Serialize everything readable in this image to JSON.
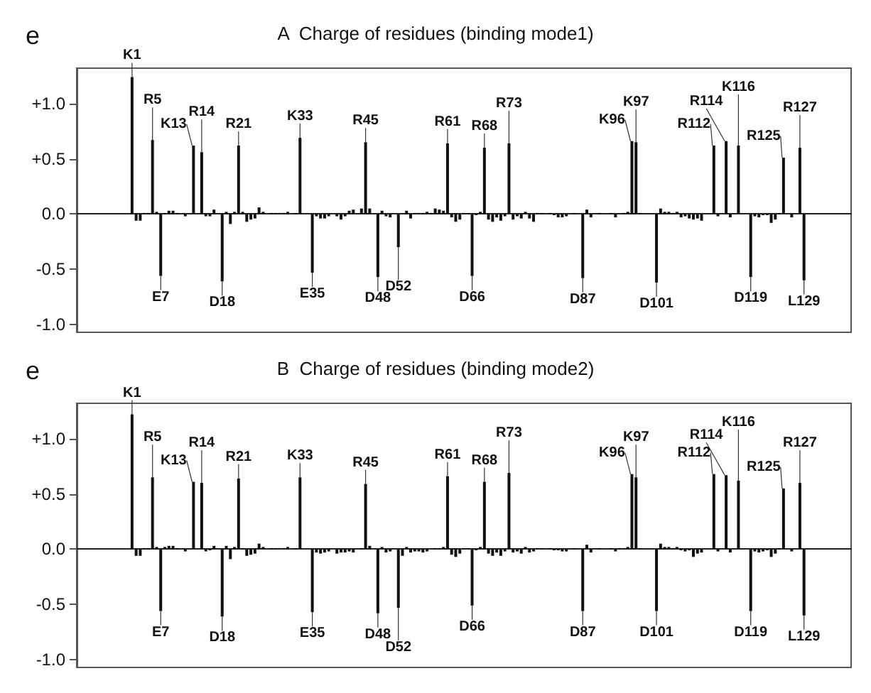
{
  "chart_data": [
    {
      "type": "bar",
      "title": "A  Charge of residues (binding mode1)",
      "annotations": [
        "e"
      ],
      "color": "#111111",
      "tick_labels": "y",
      "ylim": [
        -1.07,
        1.32
      ],
      "yticks": [
        {
          "value": 1,
          "label": "+1.0"
        },
        {
          "value": 0.5,
          "label": "+0.5"
        },
        {
          "value": 0,
          "label": "0.0"
        },
        {
          "value": -0.5,
          "label": "-0.5"
        },
        {
          "value": -1,
          "label": "-1.0"
        }
      ],
      "categories": [
        null,
        null,
        null,
        null,
        null,
        null,
        null,
        null,
        null,
        null,
        null,
        null,
        null,
        null,
        null,
        null,
        null,
        null,
        null,
        null,
        null,
        null,
        null,
        null,
        null,
        null,
        null,
        null,
        null,
        null,
        null,
        null,
        null,
        null,
        null,
        null,
        null,
        null,
        null,
        null,
        null,
        null,
        null,
        null,
        null,
        null,
        null,
        null,
        null,
        null,
        null,
        null,
        null,
        null,
        null,
        null,
        null,
        null,
        null,
        null,
        null,
        null,
        null,
        null,
        null,
        null,
        null,
        null,
        null,
        null,
        null,
        null,
        null,
        null,
        null,
        null,
        null,
        null,
        null,
        null,
        null,
        null,
        null,
        null,
        null,
        null,
        null,
        null,
        null,
        null,
        null,
        null,
        null,
        null,
        null,
        null,
        null,
        null,
        null,
        null,
        null,
        null,
        null,
        null,
        null,
        null,
        null,
        null,
        null,
        null,
        null,
        null,
        null,
        null,
        null,
        null,
        null,
        null,
        null,
        null,
        null,
        null,
        null,
        null,
        null,
        null,
        null,
        null,
        null,
        null,
        null,
        null,
        null,
        null,
        null,
        null,
        null,
        null,
        null,
        null,
        null,
        null,
        null,
        null,
        null,
        null,
        null,
        null,
        null,
        null,
        null,
        null,
        null,
        null,
        null,
        null,
        null,
        null,
        null,
        null,
        null,
        null,
        null,
        null,
        null,
        null,
        null,
        null,
        null,
        null,
        null,
        null,
        null,
        null,
        null,
        null,
        null,
        null,
        null,
        null,
        null,
        null,
        null,
        null,
        null,
        null,
        null,
        null,
        null
      ],
      "values": [
        null,
        null,
        null,
        null,
        null,
        null,
        null,
        null,
        null,
        null,
        null,
        null,
        null,
        1.24,
        -0.06,
        -0.06,
        0.01,
        0.01,
        0.67,
        0.02,
        -0.56,
        0.01,
        0.03,
        0.03,
        0.01,
        0,
        -0.02,
        0,
        0.62,
        0,
        0.56,
        -0.02,
        -0.02,
        0.04,
        0,
        -0.61,
        0.02,
        -0.09,
        0.02,
        0.62,
        0.02,
        -0.07,
        -0.05,
        -0.04,
        0.06,
        0.02,
        0,
        0.01,
        0.01,
        0.01,
        0.01,
        0.02,
        0,
        0.01,
        0.69,
        0,
        0,
        -0.53,
        -0.02,
        -0.04,
        -0.04,
        -0.02,
        0,
        -0.02,
        -0.05,
        -0.02,
        0.03,
        0.04,
        0,
        0.05,
        0.65,
        0.05,
        0,
        -0.57,
        0.03,
        -0.02,
        -0.03,
        0,
        -0.3,
        0,
        0.03,
        -0.04,
        0.01,
        0.01,
        0.01,
        0.02,
        0.01,
        0.05,
        0.04,
        0.03,
        0.64,
        -0.03,
        -0.07,
        -0.05,
        0.01,
        0.01,
        -0.56,
        -0.01,
        0.02,
        0.6,
        -0.05,
        -0.07,
        -0.03,
        -0.06,
        -0.02,
        0.64,
        -0.05,
        -0.02,
        -0.04,
        0.02,
        -0.04,
        -0.07,
        0.01,
        0.01,
        0,
        0.01,
        -0.01,
        -0.03,
        -0.03,
        -0.02,
        0,
        0.01,
        0,
        -0.58,
        0.04,
        -0.03,
        0,
        0.01,
        0,
        0,
        0.01,
        -0.03,
        0,
        0.01,
        0.02,
        0.66,
        0.65,
        0.01,
        0,
        0,
        0,
        -0.62,
        0.05,
        0.02,
        0.02,
        0.01,
        0.02,
        -0.03,
        -0.02,
        -0.04,
        -0.05,
        -0.04,
        -0.06,
        0,
        0,
        0.62,
        -0.02,
        0,
        0.66,
        -0.03,
        0,
        0.62,
        0,
        0,
        -0.57,
        -0.02,
        -0.03,
        -0.01,
        -0.01,
        -0.08,
        -0.05,
        0.01,
        0.51,
        0,
        -0.03,
        0,
        0.6,
        -0.6,
        null,
        null,
        null,
        null,
        null,
        null,
        null,
        null,
        null,
        null,
        null
      ],
      "value_labels": [
        null,
        null,
        null,
        null,
        null,
        null,
        null,
        null,
        null,
        null,
        null,
        null,
        null,
        "K1",
        null,
        null,
        null,
        null,
        "R5",
        null,
        "E7",
        null,
        null,
        null,
        null,
        null,
        null,
        null,
        "K13",
        null,
        "R14",
        null,
        null,
        null,
        null,
        "D18",
        null,
        null,
        null,
        "R21",
        null,
        null,
        null,
        null,
        null,
        null,
        null,
        null,
        null,
        null,
        null,
        null,
        null,
        null,
        "K33",
        null,
        null,
        "E35",
        null,
        null,
        null,
        null,
        null,
        null,
        null,
        null,
        null,
        null,
        null,
        null,
        "R45",
        null,
        null,
        "D48",
        null,
        null,
        null,
        null,
        "D52",
        null,
        null,
        null,
        null,
        null,
        null,
        null,
        null,
        null,
        null,
        null,
        "R61",
        null,
        null,
        null,
        null,
        null,
        "D66",
        null,
        null,
        "R68",
        null,
        null,
        null,
        null,
        null,
        "R73",
        null,
        null,
        null,
        null,
        null,
        null,
        null,
        null,
        null,
        null,
        null,
        null,
        null,
        null,
        null,
        null,
        null,
        "D87",
        null,
        null,
        null,
        null,
        null,
        null,
        null,
        null,
        null,
        null,
        null,
        "K96",
        "K97",
        null,
        null,
        null,
        null,
        "D101",
        null,
        null,
        null,
        null,
        null,
        null,
        null,
        null,
        null,
        null,
        null,
        null,
        null,
        "R112",
        null,
        null,
        "R114",
        null,
        null,
        "K116",
        null,
        null,
        "D119",
        null,
        null,
        null,
        null,
        null,
        null,
        null,
        "R125",
        null,
        null,
        null,
        "R127",
        "L129",
        null,
        null,
        null,
        null,
        null,
        null,
        null,
        null,
        null,
        null,
        null
      ]
    },
    {
      "type": "bar",
      "title": "B  Charge of residues (binding mode2)",
      "annotations": [
        "e"
      ],
      "color": "#111111",
      "tick_labels": "y",
      "ylim": [
        -1.07,
        1.32
      ],
      "yticks": [
        {
          "value": 1,
          "label": "+1.0"
        },
        {
          "value": 0.5,
          "label": "+0.5"
        },
        {
          "value": 0,
          "label": "0.0"
        },
        {
          "value": -0.5,
          "label": "-0.5"
        },
        {
          "value": -1,
          "label": "-1.0"
        }
      ],
      "categories": [
        null,
        null,
        null,
        null,
        null,
        null,
        null,
        null,
        null,
        null,
        null,
        null,
        null,
        null,
        null,
        null,
        null,
        null,
        null,
        null,
        null,
        null,
        null,
        null,
        null,
        null,
        null,
        null,
        null,
        null,
        null,
        null,
        null,
        null,
        null,
        null,
        null,
        null,
        null,
        null,
        null,
        null,
        null,
        null,
        null,
        null,
        null,
        null,
        null,
        null,
        null,
        null,
        null,
        null,
        null,
        null,
        null,
        null,
        null,
        null,
        null,
        null,
        null,
        null,
        null,
        null,
        null,
        null,
        null,
        null,
        null,
        null,
        null,
        null,
        null,
        null,
        null,
        null,
        null,
        null,
        null,
        null,
        null,
        null,
        null,
        null,
        null,
        null,
        null,
        null,
        null,
        null,
        null,
        null,
        null,
        null,
        null,
        null,
        null,
        null,
        null,
        null,
        null,
        null,
        null,
        null,
        null,
        null,
        null,
        null,
        null,
        null,
        null,
        null,
        null,
        null,
        null,
        null,
        null,
        null,
        null,
        null,
        null,
        null,
        null,
        null,
        null,
        null,
        null,
        null,
        null,
        null,
        null,
        null,
        null,
        null,
        null,
        null,
        null,
        null,
        null,
        null,
        null,
        null,
        null,
        null,
        null,
        null,
        null,
        null,
        null,
        null,
        null,
        null,
        null,
        null,
        null,
        null,
        null,
        null,
        null,
        null,
        null,
        null,
        null,
        null,
        null,
        null,
        null,
        null,
        null,
        null,
        null,
        null,
        null,
        null,
        null,
        null,
        null,
        null,
        null,
        null,
        null,
        null,
        null,
        null,
        null,
        null,
        null
      ],
      "values": [
        null,
        null,
        null,
        null,
        null,
        null,
        null,
        null,
        null,
        null,
        null,
        null,
        null,
        1.22,
        -0.06,
        -0.06,
        0.01,
        0.01,
        0.65,
        0.02,
        -0.56,
        0.02,
        0.03,
        0.03,
        0.01,
        0,
        -0.02,
        0,
        0.61,
        0,
        0.6,
        -0.02,
        -0.01,
        0.03,
        0,
        -0.61,
        0.03,
        -0.09,
        0.02,
        0.64,
        0.01,
        -0.06,
        -0.05,
        -0.04,
        0.05,
        0.02,
        0,
        0.01,
        0.01,
        0.01,
        0.01,
        0.02,
        0,
        0.01,
        0.65,
        0,
        0,
        -0.57,
        -0.03,
        -0.04,
        -0.03,
        -0.02,
        0,
        -0.04,
        -0.03,
        -0.03,
        -0.02,
        -0.03,
        0,
        0.01,
        0.59,
        0.03,
        0,
        -0.58,
        0.02,
        -0.03,
        -0.02,
        0,
        -0.53,
        -0.06,
        0.02,
        -0.03,
        -0.02,
        -0.02,
        -0.03,
        -0.02,
        0,
        0.01,
        0.01,
        0.02,
        0.66,
        -0.05,
        -0.07,
        -0.04,
        0.01,
        0.01,
        -0.51,
        -0.01,
        0.02,
        0.61,
        -0.04,
        -0.06,
        -0.03,
        -0.06,
        -0.02,
        0.69,
        -0.03,
        -0.02,
        -0.04,
        0.02,
        -0.03,
        -0.02,
        0.01,
        0.01,
        0,
        0.01,
        -0.01,
        -0.01,
        -0.02,
        -0.02,
        0,
        0.01,
        0,
        -0.56,
        0.04,
        -0.03,
        0,
        0.01,
        0,
        0,
        0.01,
        -0.02,
        0.01,
        0.01,
        0.02,
        0.68,
        0.65,
        0.01,
        0,
        0,
        0,
        -0.56,
        0.05,
        0.02,
        0.02,
        0.01,
        0.02,
        -0.01,
        -0.02,
        -0.01,
        -0.07,
        -0.04,
        -0.03,
        0,
        0,
        0.68,
        -0.02,
        0,
        0.67,
        -0.03,
        0,
        0.62,
        0,
        0,
        -0.56,
        -0.02,
        -0.03,
        -0.02,
        -0.01,
        -0.07,
        -0.04,
        0.01,
        0.55,
        0,
        -0.02,
        0,
        0.6,
        -0.6,
        null,
        null,
        null,
        null,
        null,
        null,
        null,
        null,
        null,
        null,
        null
      ],
      "value_labels": [
        null,
        null,
        null,
        null,
        null,
        null,
        null,
        null,
        null,
        null,
        null,
        null,
        null,
        "K1",
        null,
        null,
        null,
        null,
        "R5",
        null,
        "E7",
        null,
        null,
        null,
        null,
        null,
        null,
        null,
        "K13",
        null,
        "R14",
        null,
        null,
        null,
        null,
        "D18",
        null,
        null,
        null,
        "R21",
        null,
        null,
        null,
        null,
        null,
        null,
        null,
        null,
        null,
        null,
        null,
        null,
        null,
        null,
        "K33",
        null,
        null,
        "E35",
        null,
        null,
        null,
        null,
        null,
        null,
        null,
        null,
        null,
        null,
        null,
        null,
        "R45",
        null,
        null,
        "D48",
        null,
        null,
        null,
        null,
        "D52",
        null,
        null,
        null,
        null,
        null,
        null,
        null,
        null,
        null,
        null,
        null,
        "R61",
        null,
        null,
        null,
        null,
        null,
        "D66",
        null,
        null,
        "R68",
        null,
        null,
        null,
        null,
        null,
        "R73",
        null,
        null,
        null,
        null,
        null,
        null,
        null,
        null,
        null,
        null,
        null,
        null,
        null,
        null,
        null,
        null,
        null,
        "D87",
        null,
        null,
        null,
        null,
        null,
        null,
        null,
        null,
        null,
        null,
        null,
        "K96",
        "K97",
        null,
        null,
        null,
        null,
        "D101",
        null,
        null,
        null,
        null,
        null,
        null,
        null,
        null,
        null,
        null,
        null,
        null,
        null,
        "R112",
        null,
        null,
        "R114",
        null,
        null,
        "K116",
        null,
        null,
        "D119",
        null,
        null,
        null,
        null,
        null,
        null,
        null,
        "R125",
        null,
        null,
        null,
        "R127",
        "L129",
        null,
        null,
        null,
        null,
        null,
        null,
        null,
        null,
        null,
        null,
        null
      ]
    }
  ]
}
